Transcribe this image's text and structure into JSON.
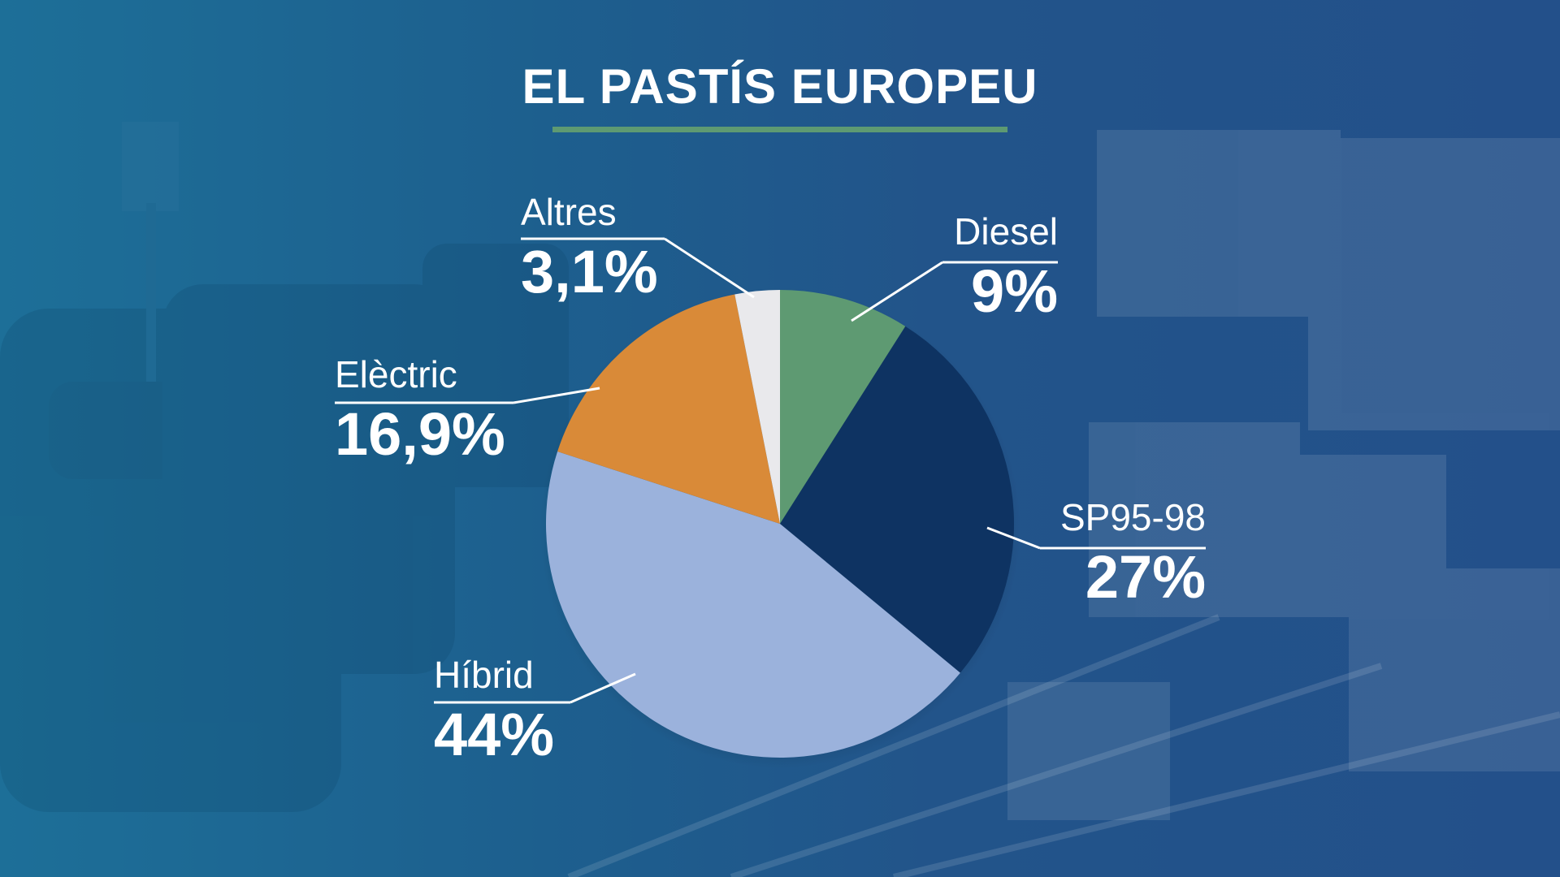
{
  "chart_data": {
    "type": "pie",
    "title": "EL PASTÍS EUROPEU",
    "slices": [
      {
        "name": "Diesel",
        "value": 9,
        "label": "9%",
        "color": "#5e9a72"
      },
      {
        "name": "SP95-98",
        "value": 27,
        "label": "27%",
        "color": "#0e3362"
      },
      {
        "name": "Híbrid",
        "value": 44,
        "label": "44%",
        "color": "#9bb2dc"
      },
      {
        "name": "Elèctric",
        "value": 16.9,
        "label": "16,9%",
        "color": "#d98a38"
      },
      {
        "name": "Altres",
        "value": 3.1,
        "label": "3,1%",
        "color": "#e9e9ec"
      }
    ]
  }
}
